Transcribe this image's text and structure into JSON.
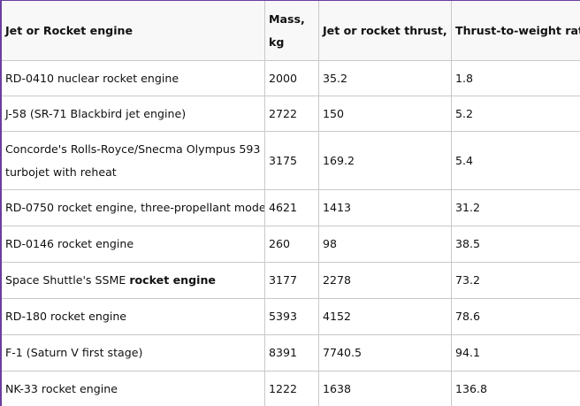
{
  "table": {
    "headers": {
      "engine": "Jet or Rocket engine",
      "mass": "Mass, kg",
      "thrust": "Jet or rocket thrust, Kn",
      "ratio": "Thrust-to-weight ratio"
    },
    "rows": [
      {
        "engine": "RD-0410 nuclear rocket engine",
        "mass": "2000",
        "thrust": "35.2",
        "ratio": "1.8"
      },
      {
        "engine": "J-58 (SR-71 Blackbird jet engine)",
        "mass": "2722",
        "thrust": "150",
        "ratio": "5.2"
      },
      {
        "engine": "Concorde's Rolls-Royce/Snecma Olympus 593 turbojet with reheat",
        "mass": "3175",
        "thrust": "169.2",
        "ratio": "5.4"
      },
      {
        "engine": "RD-0750 rocket engine, three-propellant mode",
        "mass": "4621",
        "thrust": "1413",
        "ratio": "31.2"
      },
      {
        "engine": "RD-0146 rocket engine",
        "mass": "260",
        "thrust": "98",
        "ratio": "38.5"
      },
      {
        "engine_prefix": "Space Shuttle's SSME ",
        "engine_bold": "rocket engine",
        "mass": "3177",
        "thrust": "2278",
        "ratio": "73.2"
      },
      {
        "engine": "RD-180 rocket engine",
        "mass": "5393",
        "thrust": "4152",
        "ratio": "78.6"
      },
      {
        "engine": "F-1 (Saturn V first stage)",
        "mass": "8391",
        "thrust": "7740.5",
        "ratio": "94.1"
      },
      {
        "engine": "NK-33 rocket engine",
        "mass": "1222",
        "thrust": "1638",
        "ratio": "136.8"
      }
    ]
  }
}
